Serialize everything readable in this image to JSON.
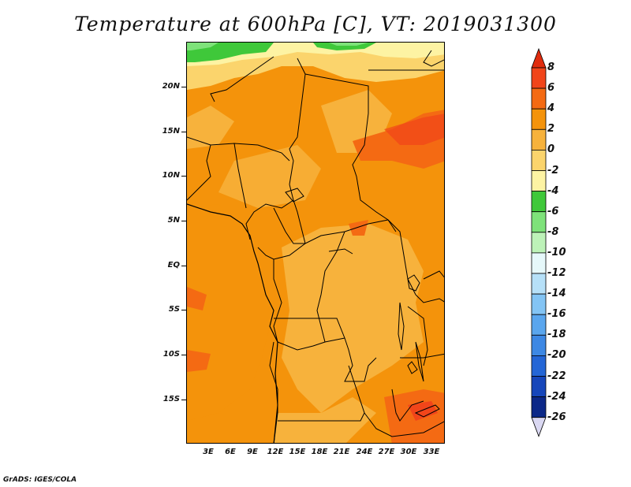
{
  "title": "Temperature at 600hPa [C], VT: 2019031300",
  "footer": "GrADS: IGES/COLA",
  "map": {
    "lat_labels": [
      "20N",
      "15N",
      "10N",
      "5N",
      "EQ",
      "5S",
      "10S",
      "15S"
    ],
    "lon_labels": [
      "3E",
      "6E",
      "9E",
      "12E",
      "15E",
      "18E",
      "21E",
      "24E",
      "27E",
      "30E",
      "33E"
    ]
  },
  "colorbar": {
    "labels": [
      "8",
      "6",
      "4",
      "2",
      "0",
      "-2",
      "-4",
      "-6",
      "-8",
      "-10",
      "-12",
      "-14",
      "-16",
      "-18",
      "-20",
      "-22",
      "-24",
      "-26"
    ],
    "colors": {
      "above_8": "#e02c0e",
      "6_8": "#f1451a",
      "4_6": "#f46a13",
      "2_4": "#f4930b",
      "0_2": "#f7b23c",
      "m2_0": "#fbd46c",
      "m4_m2": "#fdf3a3",
      "m6_m4": "#3fc83a",
      "m8_m6": "#7ee27a",
      "m10_m8": "#bdf2b8",
      "m12_m10": "#e6f8fa",
      "m14_m12": "#b6e0f8",
      "m16_m14": "#83c4f4",
      "m18_m16": "#5aa6ee",
      "m20_m18": "#3d88e4",
      "m22_m20": "#2466d6",
      "m24_m22": "#1646ba",
      "m26_m24": "#0c2888",
      "below_m26": "#dad8f2"
    }
  }
}
